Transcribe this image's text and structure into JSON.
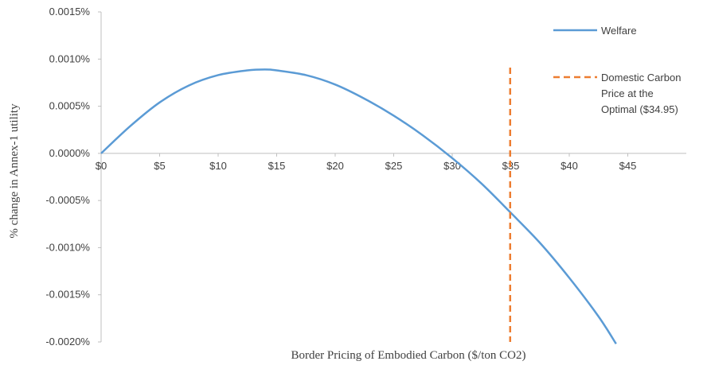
{
  "chart_data": {
    "type": "line",
    "xlabel": "Border Pricing of Embodied Carbon ($/ton CO2)",
    "ylabel": "% change in Annex-1 utility",
    "xlim": [
      0,
      50
    ],
    "ylim": [
      -0.002,
      0.0015
    ],
    "x_ticks": [
      {
        "value": 0,
        "label": "$0"
      },
      {
        "value": 5,
        "label": "$5"
      },
      {
        "value": 10,
        "label": "$10"
      },
      {
        "value": 15,
        "label": "$15"
      },
      {
        "value": 20,
        "label": "$20"
      },
      {
        "value": 25,
        "label": "$25"
      },
      {
        "value": 30,
        "label": "$30"
      },
      {
        "value": 35,
        "label": "$35"
      },
      {
        "value": 40,
        "label": "$40"
      },
      {
        "value": 45,
        "label": "$45"
      }
    ],
    "y_ticks": [
      {
        "value": 0.0015,
        "label": "0.0015%"
      },
      {
        "value": 0.001,
        "label": "0.0010%"
      },
      {
        "value": 0.0005,
        "label": "0.0005%"
      },
      {
        "value": 0,
        "label": "0.0000%"
      },
      {
        "value": -0.0005,
        "label": "-0.0005%"
      },
      {
        "value": -0.001,
        "label": "-0.0010%"
      },
      {
        "value": -0.0015,
        "label": "-0.0015%"
      },
      {
        "value": -0.002,
        "label": "-0.0020%"
      }
    ],
    "grid": false,
    "legend_position": "right",
    "series": [
      {
        "name": "Welfare",
        "color": "#5b9bd5",
        "style": "solid",
        "x": [
          0,
          2.5,
          5,
          7.5,
          10,
          12.5,
          14,
          15,
          17.5,
          20,
          22.5,
          25,
          27.5,
          30,
          32.5,
          35,
          37.5,
          40,
          42.5,
          44
        ],
        "y": [
          0,
          0.00029,
          0.00054,
          0.00072,
          0.00083,
          0.00088,
          0.00089,
          0.00088,
          0.00083,
          0.00073,
          0.00058,
          0.0004,
          0.00019,
          -5e-05,
          -0.00032,
          -0.00063,
          -0.00095,
          -0.00132,
          -0.00173,
          -0.00202
        ]
      },
      {
        "name": "Domestic Carbon Price at the Optimal ($34.95)",
        "legend_lines": [
          "Domestic Carbon",
          "Price at the",
          "Optimal ($34.95)"
        ],
        "color": "#ed7d31",
        "style": "dashed",
        "x": [
          34.95,
          34.95
        ],
        "y": [
          0.00091,
          -0.002
        ]
      }
    ]
  }
}
